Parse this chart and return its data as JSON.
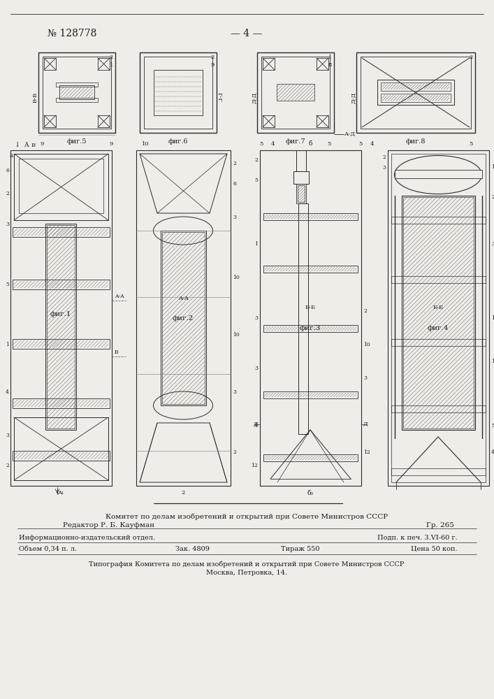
{
  "bg_color": "#f0ede8",
  "patent_number": "№ 128778",
  "page_number": "— 4 —",
  "footer_line1": "Комитет по делам изобретений и открытий при Совете Министров СССР",
  "footer_editor": "Редактор Р. Б. Кауфман",
  "footer_gr": "Гр. 265",
  "footer_dept": "Информационно-издательский отдел.",
  "footer_podp": "Подп. к печ. 3.VI-60 г.",
  "footer_vol": "Объем 0,34 п. л.",
  "footer_zak": "Зак. 4809",
  "footer_tirazh": "Тираж 550",
  "footer_price": "Цена 50 коп.",
  "footer_typo": "Типография Комитета по делам изобретений и открытий при Совете Министров СССР",
  "footer_addr": "Москва, Петровка, 14.",
  "lc": "#2a2a2a",
  "tc": "#1a1a1a"
}
